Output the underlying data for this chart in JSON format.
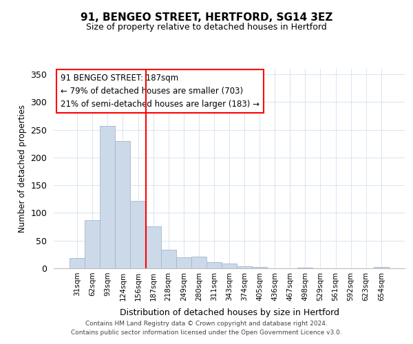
{
  "title": "91, BENGEO STREET, HERTFORD, SG14 3EZ",
  "subtitle": "Size of property relative to detached houses in Hertford",
  "xlabel": "Distribution of detached houses by size in Hertford",
  "ylabel": "Number of detached properties",
  "footer_line1": "Contains HM Land Registry data © Crown copyright and database right 2024.",
  "footer_line2": "Contains public sector information licensed under the Open Government Licence v3.0.",
  "bar_labels": [
    "31sqm",
    "62sqm",
    "93sqm",
    "124sqm",
    "156sqm",
    "187sqm",
    "218sqm",
    "249sqm",
    "280sqm",
    "311sqm",
    "343sqm",
    "374sqm",
    "405sqm",
    "436sqm",
    "467sqm",
    "498sqm",
    "529sqm",
    "561sqm",
    "592sqm",
    "623sqm",
    "654sqm"
  ],
  "bar_values": [
    19,
    87,
    257,
    230,
    122,
    76,
    33,
    20,
    21,
    11,
    9,
    4,
    2,
    0,
    0,
    1,
    0,
    0,
    0,
    0,
    2
  ],
  "bar_color": "#ccd9e8",
  "bar_edge_color": "#a0b8cc",
  "vline_index": 5,
  "vline_color": "red",
  "ylim": [
    0,
    360
  ],
  "yticks": [
    0,
    50,
    100,
    150,
    200,
    250,
    300,
    350
  ],
  "annotation_text": "91 BENGEO STREET: 187sqm\n← 79% of detached houses are smaller (703)\n21% of semi-detached houses are larger (183) →",
  "annotation_box_facecolor": "white",
  "annotation_box_edgecolor": "red",
  "grid_color": "#d8e4f0"
}
